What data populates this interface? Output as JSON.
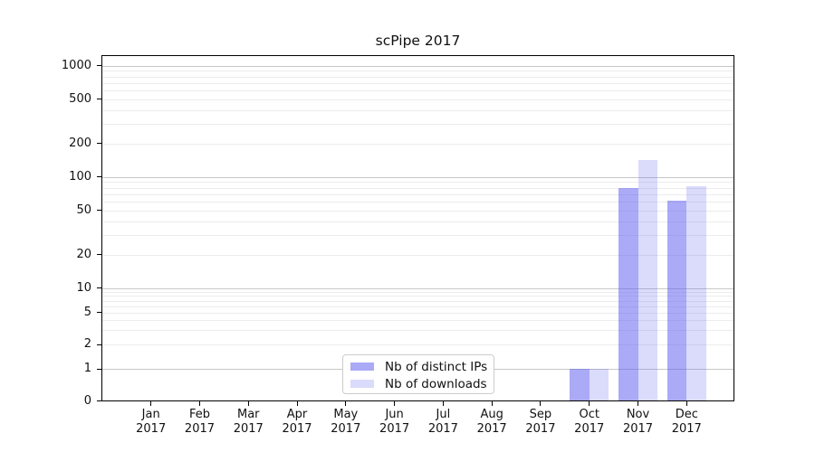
{
  "chart_data": {
    "type": "bar",
    "title": "scPipe 2017",
    "categories": [
      "Jan",
      "Feb",
      "Mar",
      "Apr",
      "May",
      "Jun",
      "Jul",
      "Aug",
      "Sep",
      "Oct",
      "Nov",
      "Dec"
    ],
    "year": "2017",
    "series": [
      {
        "name": "Nb of distinct IPs",
        "color": "rgba(85,85,238,0.5)",
        "values": [
          0,
          0,
          0,
          0,
          0,
          0,
          0,
          0,
          0,
          1,
          78,
          61
        ]
      },
      {
        "name": "Nb of downloads",
        "color": "rgba(85,85,238,0.21)",
        "values": [
          0,
          0,
          0,
          0,
          0,
          0,
          0,
          0,
          0,
          1,
          140,
          82
        ]
      }
    ],
    "y_axis": {
      "scale": "symlog",
      "ticks": [
        0,
        1,
        2,
        5,
        10,
        20,
        50,
        100,
        200,
        500,
        1000
      ],
      "minor_gridlines": [
        3,
        4,
        6,
        7,
        8,
        9,
        30,
        40,
        60,
        70,
        80,
        90,
        300,
        400,
        600,
        700,
        800,
        900
      ],
      "major_gridlines": [
        1,
        10,
        100,
        1000
      ],
      "ylim": [
        0,
        1250
      ]
    },
    "legend": {
      "position": "bottom-center"
    },
    "grid": "horizontal",
    "colors": {
      "bar_base": "#5555ee",
      "grid_major": "#c8c8c8",
      "grid_minor": "#ececec",
      "axis": "#000000",
      "background": "#ffffff",
      "legend_border": "#cccccc"
    }
  }
}
